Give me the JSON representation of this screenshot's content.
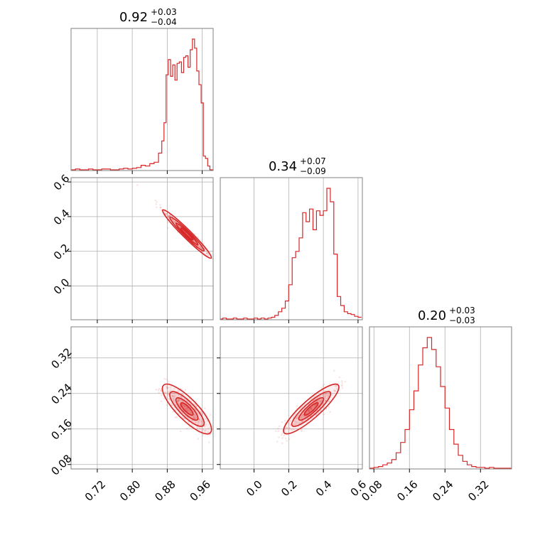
{
  "chart_data": {
    "type": "corner",
    "color": "#d62728",
    "parameters": [
      {
        "title_value": "0.92",
        "title_plus": "+0.03",
        "title_minus": "−0.04",
        "range": [
          0.66,
          0.985
        ],
        "ticks": [
          0.72,
          0.8,
          0.88,
          0.96
        ],
        "tick_labels": [
          "0.72",
          "0.80",
          "0.88",
          "0.96"
        ]
      },
      {
        "title_value": "0.34",
        "title_plus": "+0.07",
        "title_minus": "−0.09",
        "range": [
          -0.195,
          0.625
        ],
        "ticks": [
          0.0,
          0.2,
          0.4,
          0.6
        ],
        "tick_labels": [
          "0.0",
          "0.2",
          "0.4",
          "0.6"
        ]
      },
      {
        "title_value": "0.20",
        "title_plus": "+0.03",
        "title_minus": "−0.03",
        "range": [
          0.07,
          0.39
        ],
        "ticks": [
          0.08,
          0.16,
          0.24,
          0.32
        ],
        "tick_labels": [
          "0.08",
          "0.16",
          "0.24",
          "0.32"
        ]
      }
    ],
    "histograms": [
      {
        "x": [
          0.665,
          0.675,
          0.685,
          0.695,
          0.705,
          0.715,
          0.725,
          0.735,
          0.745,
          0.755,
          0.765,
          0.775,
          0.785,
          0.795,
          0.805,
          0.815,
          0.825,
          0.835,
          0.845,
          0.855,
          0.865,
          0.87,
          0.875,
          0.88,
          0.885,
          0.89,
          0.895,
          0.9,
          0.905,
          0.91,
          0.915,
          0.92,
          0.925,
          0.93,
          0.935,
          0.94,
          0.945,
          0.95,
          0.955,
          0.96,
          0.965,
          0.97,
          0.975,
          0.98
        ],
        "counts": [
          0,
          1,
          0,
          0,
          1,
          0,
          0,
          1,
          1,
          0,
          0,
          1,
          2,
          1,
          2,
          3,
          6,
          5,
          8,
          10,
          22,
          38,
          62,
          125,
          145,
          123,
          138,
          118,
          140,
          142,
          128,
          148,
          150,
          135,
          158,
          172,
          160,
          130,
          112,
          88,
          18,
          15,
          5,
          0
        ]
      },
      {
        "x": [
          -0.19,
          -0.17,
          -0.15,
          -0.13,
          -0.11,
          -0.09,
          -0.07,
          -0.05,
          -0.03,
          -0.01,
          0.01,
          0.03,
          0.05,
          0.07,
          0.09,
          0.11,
          0.13,
          0.15,
          0.17,
          0.19,
          0.21,
          0.23,
          0.25,
          0.27,
          0.29,
          0.31,
          0.33,
          0.35,
          0.37,
          0.39,
          0.41,
          0.43,
          0.45,
          0.47,
          0.49,
          0.51,
          0.53,
          0.55,
          0.57,
          0.59,
          0.61
        ],
        "counts": [
          0,
          1,
          0,
          0,
          1,
          0,
          0,
          1,
          0,
          0,
          1,
          0,
          1,
          0,
          1,
          2,
          4,
          8,
          12,
          20,
          38,
          68,
          75,
          90,
          118,
          108,
          122,
          99,
          120,
          115,
          120,
          145,
          130,
          72,
          25,
          15,
          8,
          6,
          5,
          3,
          2
        ]
      },
      {
        "x": [
          0.075,
          0.085,
          0.095,
          0.105,
          0.115,
          0.125,
          0.135,
          0.145,
          0.155,
          0.165,
          0.175,
          0.185,
          0.195,
          0.205,
          0.215,
          0.225,
          0.235,
          0.245,
          0.255,
          0.265,
          0.275,
          0.285,
          0.295,
          0.305,
          0.315,
          0.325,
          0.335,
          0.345,
          0.355,
          0.365,
          0.375,
          0.385
        ],
        "counts": [
          0,
          1,
          2,
          4,
          6,
          10,
          18,
          30,
          45,
          68,
          90,
          120,
          140,
          152,
          138,
          118,
          95,
          70,
          45,
          28,
          15,
          8,
          4,
          2,
          1,
          1,
          0,
          1,
          0,
          0,
          0,
          0
        ]
      }
    ],
    "pairs": [
      {
        "x_param": 0,
        "y_param": 1,
        "center": [
          0.925,
          0.3
        ],
        "sd": [
          0.028,
          0.07
        ],
        "corr": -0.97,
        "n_points": 320
      },
      {
        "x_param": 0,
        "y_param": 2,
        "center": [
          0.925,
          0.205
        ],
        "sd": [
          0.028,
          0.028
        ],
        "corr": -0.82,
        "n_points": 320
      },
      {
        "x_param": 1,
        "y_param": 2,
        "center": [
          0.33,
          0.205
        ],
        "sd": [
          0.08,
          0.028
        ],
        "corr": 0.88,
        "n_points": 320
      }
    ]
  }
}
